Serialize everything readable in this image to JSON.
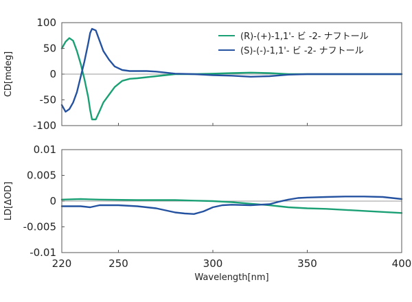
{
  "chart_data": [
    {
      "type": "line",
      "ylabel": "CD[mdeg]",
      "xlim": [
        220,
        400
      ],
      "ylim": [
        -100,
        100
      ],
      "xticks": [
        220,
        250,
        300,
        350,
        400
      ],
      "yticks": [
        "100",
        "50",
        "0",
        "-50",
        "-100"
      ],
      "ytick_values": [
        100,
        50,
        0,
        -50,
        -100
      ],
      "legend": "top-right",
      "series": [
        {
          "name": "(R)-(+)-1,1'- ビ -2- ナフトール",
          "color": "#1aa074",
          "x": [
            220,
            222,
            224,
            226,
            228,
            230,
            232,
            234,
            235,
            236,
            238,
            240,
            242,
            245,
            248,
            252,
            256,
            260,
            265,
            270,
            275,
            280,
            290,
            300,
            310,
            320,
            330,
            340,
            350,
            360,
            370,
            380,
            390,
            400
          ],
          "y": [
            50,
            63,
            70,
            65,
            45,
            20,
            -10,
            -45,
            -70,
            -88,
            -88,
            -72,
            -55,
            -40,
            -25,
            -13,
            -9,
            -8,
            -6,
            -4,
            -2,
            0,
            0,
            1,
            2,
            3,
            2,
            0,
            0,
            0,
            0,
            0,
            0,
            0
          ]
        },
        {
          "name": "(S)-(-)-1,1'- ビ -2- ナフトール",
          "color": "#2452a0",
          "x": [
            220,
            222,
            224,
            226,
            228,
            230,
            232,
            234,
            235,
            236,
            238,
            240,
            242,
            245,
            248,
            252,
            256,
            260,
            265,
            270,
            275,
            280,
            290,
            300,
            310,
            320,
            330,
            340,
            350,
            360,
            370,
            380,
            390,
            400
          ],
          "y": [
            -60,
            -73,
            -68,
            -55,
            -35,
            -5,
            25,
            60,
            80,
            88,
            85,
            65,
            45,
            28,
            15,
            8,
            6,
            6,
            6,
            5,
            3,
            1,
            0,
            -2,
            -3,
            -5,
            -4,
            -1,
            0,
            0,
            0,
            0,
            0,
            0
          ]
        }
      ]
    },
    {
      "type": "line",
      "xlabel": "Wavelength[nm]",
      "ylabel": "LD[ΔOD]",
      "xlim": [
        220,
        400
      ],
      "ylim": [
        -0.01,
        0.01
      ],
      "xticks": [
        220,
        250,
        300,
        350,
        400
      ],
      "yticks": [
        "0.01",
        "0.005",
        "0",
        "-0.005",
        "-0.01"
      ],
      "ytick_values": [
        0.01,
        0.005,
        0,
        -0.005,
        -0.01
      ],
      "series": [
        {
          "name": "(R)-(+)-1,1'- ビ -2- ナフトール",
          "color": "#1aa074",
          "x": [
            220,
            230,
            240,
            260,
            280,
            290,
            300,
            310,
            320,
            330,
            340,
            350,
            360,
            370,
            380,
            390,
            400
          ],
          "y": [
            0.0003,
            0.0004,
            0.0003,
            0.0002,
            0.0002,
            0.0001,
            0.0,
            -0.0002,
            -0.0005,
            -0.0008,
            -0.0012,
            -0.0014,
            -0.0015,
            -0.0017,
            -0.0019,
            -0.0021,
            -0.0023
          ]
        },
        {
          "name": "(S)-(-)-1,1'- ビ -2- ナフトール",
          "color": "#2452a0",
          "x": [
            220,
            225,
            230,
            235,
            240,
            250,
            260,
            270,
            275,
            280,
            285,
            290,
            295,
            300,
            305,
            310,
            320,
            330,
            335,
            340,
            345,
            350,
            360,
            370,
            380,
            390,
            400
          ],
          "y": [
            -0.001,
            -0.001,
            -0.001,
            -0.0012,
            -0.0008,
            -0.0008,
            -0.001,
            -0.0014,
            -0.0018,
            -0.0022,
            -0.0024,
            -0.0025,
            -0.002,
            -0.0012,
            -0.0008,
            -0.0007,
            -0.0008,
            -0.0006,
            -0.0001,
            0.0003,
            0.0006,
            0.0007,
            0.0008,
            0.0009,
            0.0009,
            0.0008,
            0.0004
          ]
        }
      ]
    }
  ]
}
